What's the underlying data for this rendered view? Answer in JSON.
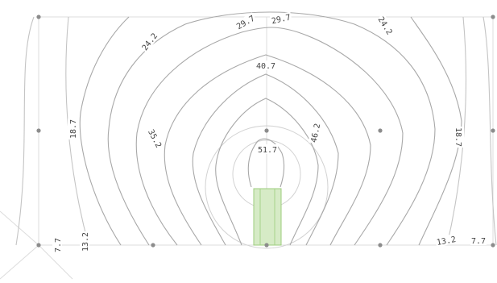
{
  "figure": {
    "description_free": true,
    "contour_labels": [
      {
        "text": "24.2",
        "name": "contour-label-24-2-left"
      },
      {
        "text": "29.7",
        "name": "contour-label-29-7-left"
      },
      {
        "text": "29.7",
        "name": "contour-label-29-7-right"
      },
      {
        "text": "24.2",
        "name": "contour-label-24-2-right"
      },
      {
        "text": "40.7",
        "name": "contour-label-40-7"
      },
      {
        "text": "18.7",
        "name": "contour-label-18-7-left"
      },
      {
        "text": "35.2",
        "name": "contour-label-35-2"
      },
      {
        "text": "46.2",
        "name": "contour-label-46-2"
      },
      {
        "text": "51.7",
        "name": "contour-label-51-7"
      },
      {
        "text": "18.7",
        "name": "contour-label-18-7-right"
      },
      {
        "text": "7.7",
        "name": "contour-label-7-7-left"
      },
      {
        "text": "13.2",
        "name": "contour-label-13-2-left"
      },
      {
        "text": "13.2",
        "name": "contour-label-13-2-right"
      },
      {
        "text": "7.7",
        "name": "contour-label-7-7-right"
      }
    ],
    "colors": {
      "contour": "#a8a8a8",
      "node": "#8c8c8c",
      "highlight_fill": "#d6ebc6",
      "highlight_stroke": "#9ccc7c"
    }
  }
}
